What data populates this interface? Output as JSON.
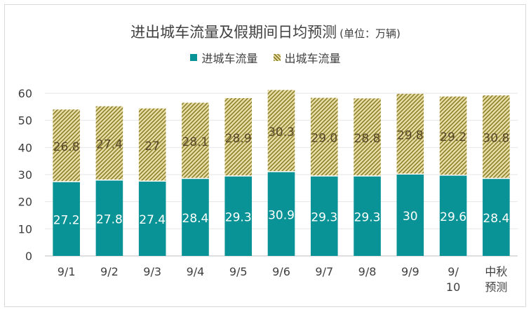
{
  "chart_data": {
    "type": "bar",
    "stacked": true,
    "title": "进出城车流量及假期间日均预测",
    "unit": "(单位：万辆)",
    "categories": [
      "9/1",
      "9/2",
      "9/3",
      "9/4",
      "9/5",
      "9/6",
      "9/7",
      "9/8",
      "9/9",
      "9/10",
      "中秋预测"
    ],
    "series": [
      {
        "name": "进城车流量",
        "values": [
          27.2,
          27.8,
          27.4,
          28.4,
          29.3,
          30.9,
          29.3,
          29.3,
          30,
          29.6,
          28.4
        ],
        "labels": [
          "27.2",
          "27.8",
          "27.4",
          "28.4",
          "29.3",
          "30.9",
          "29.3",
          "29.3",
          "30",
          "29.6",
          "28.4"
        ],
        "color": "#0a9396"
      },
      {
        "name": "出城车流量",
        "values": [
          26.8,
          27.4,
          27,
          28.1,
          28.9,
          30.3,
          29.0,
          28.8,
          29.8,
          29.2,
          30.8
        ],
        "labels": [
          "26.8",
          "27.4",
          "27",
          "28.1",
          "28.9",
          "30.3",
          "29.0",
          "28.8",
          "29.8",
          "29.2",
          "30.8"
        ],
        "color": "#c9b458"
      }
    ],
    "ylim": [
      0,
      60
    ],
    "yticks": [
      0,
      10,
      20,
      30,
      40,
      50,
      60
    ],
    "grid": true,
    "legend": "top"
  }
}
